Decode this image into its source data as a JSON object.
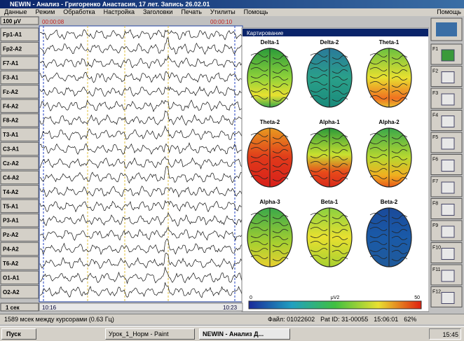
{
  "window": {
    "title": "NEWIN - Анализ - Григоренко Анастасия, 17 лет. Запись 26.02.01",
    "menu": [
      "Данные",
      "Режим",
      "Обработка",
      "Настройка",
      "Заголовки",
      "Печать",
      "Утилиты",
      "Помощь"
    ],
    "help": "Помощь"
  },
  "eeg": {
    "scale": "100 μV",
    "time_start": "00:00:08",
    "time_end": "00:00:10",
    "channels": [
      "Fp1-A1",
      "Fp2-A2",
      "F7-A1",
      "F3-A1",
      "Fz-A2",
      "F4-A2",
      "F8-A2",
      "T3-A1",
      "C3-A1",
      "Cz-A2",
      "C4-A2",
      "T4-A2",
      "T5-A1",
      "P3-A1",
      "Pz-A2",
      "P4-A2",
      "T6-A2",
      "O1-A1",
      "O2-A2"
    ],
    "time_scale": "1 сек",
    "scroll_left": "10:16",
    "scroll_right": "10:23"
  },
  "maps": {
    "title": "Картирование",
    "labels": [
      "Delta-1",
      "Delta-2",
      "Theta-1",
      "Theta-2",
      "Alpha-1",
      "Alpha-2",
      "Alpha-3",
      "Beta-1",
      "Beta-2"
    ],
    "colorbar": {
      "min": 0,
      "unit": "μV2",
      "max": 50
    }
  },
  "toolbar": {
    "keys": [
      "F1",
      "F2",
      "F3",
      "F4",
      "F5",
      "F6",
      "F7",
      "F8",
      "F9",
      "F10",
      "F11",
      "F12"
    ]
  },
  "status": {
    "cursor": "1589 мсек между курсорами (0.63 Гц)",
    "file": "Файл: 01022602",
    "pat": "Pat ID: 31-00055",
    "time": "15:06:01",
    "zoom": "62%"
  },
  "taskbar": {
    "start": "Пуск",
    "tasks": [
      "Урок_1_Норм - Paint",
      "NEWIN - Анализ Д..."
    ],
    "clock": "15:45"
  }
}
